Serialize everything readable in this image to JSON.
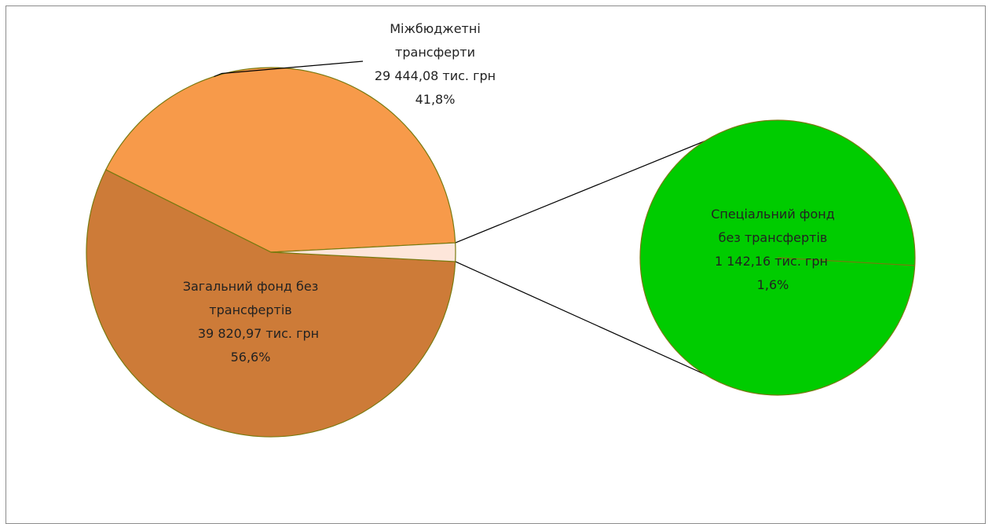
{
  "chart_data": {
    "type": "pie",
    "variant": "pie-of-pie",
    "slices": [
      {
        "label_lines": [
          "Міжбюджетні",
          "трансферти",
          "29 444,08 тис. грн",
          "41,8%"
        ],
        "value": 29444.08,
        "percent": 41.8,
        "color": "#f79a4a"
      },
      {
        "label_lines": [
          "Загальний фонд без",
          "трансфертів",
          "39 820,97 тис. грн",
          "56,6%"
        ],
        "value": 39820.97,
        "percent": 56.6,
        "color": "#cd7b38"
      },
      {
        "label_lines": [
          "Спеціальний фонд",
          "без трансфертів",
          "1 142,16 тис. грн",
          "1,6%"
        ],
        "value": 1142.16,
        "percent": 1.6,
        "color": "#fde6da"
      }
    ],
    "secondary_pie": {
      "source_slice": 2,
      "color": "#00cc00"
    },
    "outline_color": "#7a7a10",
    "connector_color": "#000000"
  }
}
